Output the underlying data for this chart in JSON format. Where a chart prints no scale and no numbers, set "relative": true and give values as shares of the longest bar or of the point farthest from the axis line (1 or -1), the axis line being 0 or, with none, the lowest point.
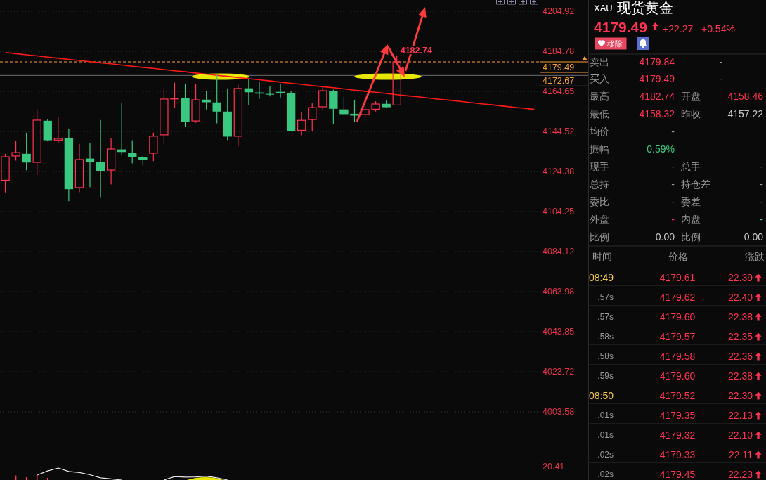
{
  "chart_data": [
    {
      "type": "candlestick",
      "categories": [
        null,
        null,
        null,
        null,
        null,
        null,
        null,
        null,
        null,
        null,
        null,
        null,
        null,
        null,
        null,
        null,
        null,
        null,
        null,
        null,
        null,
        null,
        null,
        null,
        null,
        null,
        null,
        null,
        null,
        null,
        null,
        null,
        null,
        null,
        null,
        null,
        null,
        null,
        null,
        null,
        null,
        null,
        null,
        null,
        null,
        null,
        null,
        null,
        null,
        null,
        null
      ],
      "ohlc": [
        [
          4120.0,
          4133.3,
          4113.9,
          4131.8
        ],
        [
          4132.2,
          4139.7,
          4129.9,
          4133.9
        ],
        [
          4133.3,
          4143.9,
          4125.0,
          4128.9
        ],
        [
          4129.0,
          4155.6,
          4122.6,
          4150.2
        ],
        [
          4149.9,
          4150.6,
          4139.5,
          4140.1
        ],
        [
          4140.2,
          4151.7,
          4138.4,
          4141.0
        ],
        [
          4141.1,
          4145.7,
          4109.5,
          4115.5
        ],
        [
          4116.3,
          4138.3,
          4114.0,
          4130.4
        ],
        [
          4130.9,
          4138.6,
          4116.5,
          4129.2
        ],
        [
          4129.1,
          4150.3,
          4111.2,
          4124.6
        ],
        [
          4125.1,
          4141.0,
          4117.9,
          4135.7
        ],
        [
          4135.5,
          4158.8,
          4132.4,
          4134.2
        ],
        [
          4133.7,
          4140.1,
          4128.5,
          4131.7
        ],
        [
          4131.6,
          4132.3,
          4127.5,
          4130.3
        ],
        [
          4133.6,
          4143.9,
          4129.6,
          4142.1
        ],
        [
          4142.8,
          4166.2,
          4138.3,
          4160.8
        ],
        [
          4161.0,
          4169.0,
          4156.4,
          4161.2
        ],
        [
          4161.2,
          4168.3,
          4146.8,
          4149.4
        ],
        [
          4149.8,
          4168.3,
          4148.9,
          4160.4
        ],
        [
          4160.5,
          4164.8,
          4155.6,
          4159.2
        ],
        [
          4159.1,
          4172.9,
          4148.6,
          4154.5
        ],
        [
          4154.5,
          4166.2,
          4140.2,
          4141.9
        ],
        [
          4142.1,
          4168.0,
          4137.0,
          4166.1
        ],
        [
          4166.2,
          4170.9,
          4157.8,
          4164.2
        ],
        [
          4164.1,
          4169.4,
          4160.9,
          4163.5
        ],
        [
          4163.4,
          4167.2,
          4162.1,
          4163.0
        ],
        [
          4164.4,
          4168.3,
          4161.6,
          4163.9
        ],
        [
          4163.7,
          4164.8,
          4144.4,
          4144.6
        ],
        [
          4145.1,
          4154.2,
          4142.6,
          4150.1
        ],
        [
          4150.5,
          4158.7,
          4144.7,
          4156.5
        ],
        [
          4156.9,
          4167.1,
          4155.3,
          4165.0
        ],
        [
          4164.8,
          4165.5,
          4148.3,
          4155.9
        ],
        [
          4155.6,
          4161.9,
          4153.1,
          4153.2
        ],
        [
          4153.4,
          4160.2,
          4149.1,
          4152.5
        ],
        [
          4153.0,
          4161.2,
          4151.1,
          4155.5
        ],
        [
          4155.7,
          4159.7,
          4154.6,
          4158.3
        ],
        [
          4158.4,
          4160.2,
          4156.6,
          4156.7
        ],
        [
          4157.8,
          4182.74,
          4157.6,
          4179.49
        ],
        null,
        null,
        null,
        null,
        null,
        null,
        null,
        null,
        null,
        null,
        null,
        null,
        null
      ],
      "colors": [
        "#ff3352",
        "#ff3352",
        "#3ac77f",
        "#ff3352",
        "#3ac77f",
        "#ff3352",
        "#3ac77f",
        "#ff3352",
        "#3ac77f",
        "#3ac77f",
        "#ff3352",
        "#3ac77f",
        "#3ac77f",
        "#3ac77f",
        "#ff3352",
        "#ff3352",
        "#ff3352",
        "#3ac77f",
        "#ff3352",
        "#3ac77f",
        "#3ac77f",
        "#3ac77f",
        "#ff3352",
        "#3ac77f",
        "#3ac77f",
        "#3ac77f",
        "#3ac77f",
        "#3ac77f",
        "#ff3352",
        "#ff3352",
        "#ff3352",
        "#3ac77f",
        "#3ac77f",
        "#3ac77f",
        "#ff3352",
        "#ff3352",
        "#3ac77f",
        "#ff3352",
        null,
        null,
        null,
        null,
        null,
        null,
        null,
        null,
        null,
        null,
        null,
        null,
        null
      ],
      "series": [
        {
          "type": "line",
          "color": "#ff1a1a",
          "values": [
            4184.2,
            4183.6,
            4183.0,
            4182.5,
            4181.9,
            4181.3,
            4180.7,
            4180.2,
            4179.6,
            4179.0,
            4178.5,
            4177.9,
            4177.3,
            4176.7,
            4176.2,
            4175.6,
            4175.0,
            4174.5,
            4173.9,
            4173.3,
            4172.7,
            4172.2,
            4171.6,
            4171.0,
            4170.5,
            4169.9,
            4169.3,
            4168.7,
            4168.2,
            4167.6,
            4167.0,
            4166.5,
            4165.9,
            4165.3,
            4164.7,
            4164.2,
            4163.6,
            4163.0,
            4162.4,
            4161.9,
            4161.3,
            4160.7,
            4160.2,
            4159.6,
            4159.0,
            4158.4,
            4157.9,
            4157.3,
            4156.7,
            4156.2,
            4155.6
          ]
        }
      ],
      "ylim": [
        3984.2,
        4204.92
      ],
      "yticks": [
        4204.92,
        4184.78,
        4164.65,
        4144.52,
        4124.38,
        4104.25,
        4084.12,
        4063.98,
        4043.85,
        4023.72,
        4003.58
      ],
      "grid": "y",
      "tick_labels": "y",
      "ref_lines": [
        {
          "axis": "y",
          "value": 4179.49,
          "label": "4179.49",
          "color": "#ff9a2e",
          "line_style": "dashed"
        },
        {
          "axis": "y",
          "value": 4172.67,
          "label": "4172.67",
          "color": "#6e6e6e",
          "line_style": "solid"
        }
      ],
      "annotations": [
        "4182.74"
      ]
    },
    {
      "type": "line",
      "relative": true,
      "categories": [
        null,
        null,
        null,
        null,
        null,
        null,
        null,
        null,
        null,
        null,
        null,
        null,
        null,
        null,
        null,
        null,
        null,
        null,
        null,
        null,
        null,
        null,
        null,
        null,
        null,
        null,
        null,
        null,
        null,
        null,
        null,
        null,
        null,
        null,
        null,
        null,
        null,
        null,
        null,
        null,
        null,
        null,
        null,
        null,
        null,
        null,
        null,
        null,
        null,
        null,
        null
      ],
      "series": [
        {
          "color": "#e6e6e6",
          "values": [
            null,
            null,
            null,
            0.41,
            0.76,
            1,
            0.71,
            0.62,
            0.44,
            0.18,
            0.09,
            0,
            null,
            null,
            null,
            0,
            0.29,
            0.24,
            0.26,
            0.32,
            0.18,
            0,
            null,
            null,
            null,
            null,
            null,
            null,
            null,
            null,
            null,
            null,
            null,
            null,
            null,
            null,
            null,
            null,
            null,
            null,
            null,
            null,
            null,
            null,
            null,
            null,
            null,
            null,
            null,
            null,
            null
          ]
        },
        {
          "type": "bar",
          "color": "#ff3352",
          "values": [
            null,
            0.38,
            0.24,
            0.53,
            0.18,
            null,
            null,
            null,
            null,
            null,
            null,
            null,
            null,
            null,
            null,
            null,
            null,
            null,
            null,
            null,
            null,
            null,
            null,
            null,
            null,
            null,
            null,
            null,
            null,
            null,
            null,
            null,
            null,
            null,
            null,
            null,
            null,
            null,
            null,
            null,
            null,
            null,
            null,
            null,
            null,
            null,
            null,
            null,
            null,
            null,
            null
          ]
        }
      ],
      "annotations": [
        "20.41"
      ]
    },
    {
      "type": "other",
      "annotations": [
        "XAU",
        "现货黄金",
        "4179.49",
        "+22.27",
        "+0.54%",
        "移除",
        "卖出",
        "4179.84",
        "-",
        "买入",
        "4179.49",
        "-",
        "最高",
        "4182.74",
        "开盘",
        "4158.46",
        "最低",
        "4158.32",
        "昨收",
        "4157.22",
        "均价",
        "-",
        "振幅",
        "0.59%",
        "现手",
        "-",
        "总手",
        "-",
        "总持",
        "-",
        "持仓差",
        "-",
        "委比",
        "-",
        "委差",
        "-",
        "外盘",
        "-",
        "内盘",
        "-",
        "比例",
        "0.00",
        "比例",
        "0.00",
        "时间",
        "价格",
        "涨跌",
        "08:49",
        "4179.61",
        "22.39",
        ".57s",
        "4179.62",
        "22.40",
        ".57s",
        "4179.60",
        "22.38",
        ".58s",
        "4179.57",
        "22.35",
        ".58s",
        "4179.58",
        "22.36",
        ".59s",
        "4179.60",
        "22.38",
        "08:50",
        "4179.52",
        "22.30",
        ".01s",
        "4179.35",
        "22.13",
        ".01s",
        "4179.32",
        "22.10",
        ".02s",
        "4179.33",
        "22.11",
        ".02s",
        "4179.45",
        "22.23"
      ]
    }
  ]
}
